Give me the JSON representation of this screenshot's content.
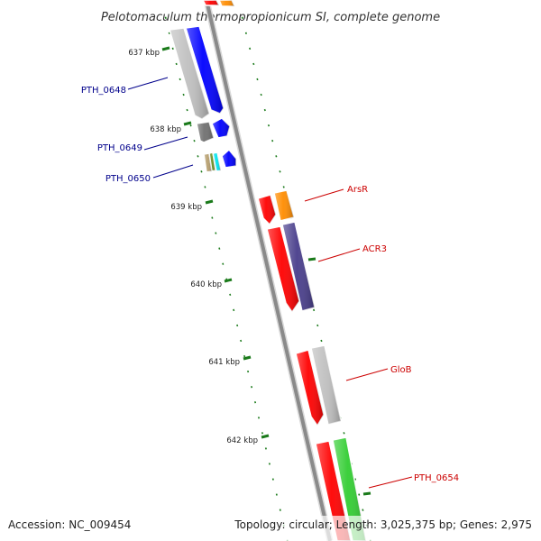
{
  "title": "Pelotomaculum thermopropionicum SI, complete genome",
  "footer": {
    "accession": "Accession: NC_009454",
    "topology": "Topology: circular; Length: 3,025,375 bp; Genes: 2,975"
  },
  "colors": {
    "backbone": "#8a8a8a",
    "tick": "#1a7a1a",
    "label_left": "#00008b",
    "label_right": "#cc0000"
  },
  "ticks": [
    {
      "label": "637 kbp"
    },
    {
      "label": "638 kbp"
    },
    {
      "label": "639 kbp"
    },
    {
      "label": "640 kbp"
    },
    {
      "label": "641 kbp"
    },
    {
      "label": "642 kbp"
    }
  ],
  "gene_labels": [
    {
      "text": "PTH_0648",
      "side": "left"
    },
    {
      "text": "PTH_0649",
      "side": "left"
    },
    {
      "text": "PTH_0650",
      "side": "left"
    },
    {
      "text": "ArsR",
      "side": "right"
    },
    {
      "text": "ACR3",
      "side": "right"
    },
    {
      "text": "GloB",
      "side": "right"
    },
    {
      "text": "PTH_0654",
      "side": "right"
    }
  ],
  "genes": [
    {
      "name": "top-red",
      "color": "#ff0000"
    },
    {
      "name": "top-orange",
      "color": "#ff8c00"
    },
    {
      "name": "pth0648-gray",
      "color": "#c0c0c0"
    },
    {
      "name": "pth0648-blue",
      "color": "#0000ff"
    },
    {
      "name": "pth0649-darkgray",
      "color": "#707070"
    },
    {
      "name": "pth0649-blue",
      "color": "#0000ff"
    },
    {
      "name": "pth0650-tan",
      "color": "#b8a070"
    },
    {
      "name": "pth0650-olive",
      "color": "#6b8e23"
    },
    {
      "name": "pth0650-cyan",
      "color": "#00e5ee"
    },
    {
      "name": "pth0650-blue",
      "color": "#0000ff"
    },
    {
      "name": "arsr-red",
      "color": "#ff0000"
    },
    {
      "name": "arsr-orange",
      "color": "#ff8c00"
    },
    {
      "name": "acr3-red",
      "color": "#ff0000"
    },
    {
      "name": "acr3-purple",
      "color": "#483d8b"
    },
    {
      "name": "glob-red",
      "color": "#ff0000"
    },
    {
      "name": "glob-gray",
      "color": "#c0c0c0"
    },
    {
      "name": "pth0654-red",
      "color": "#ff0000"
    },
    {
      "name": "pth0654-green",
      "color": "#32cd32"
    }
  ]
}
